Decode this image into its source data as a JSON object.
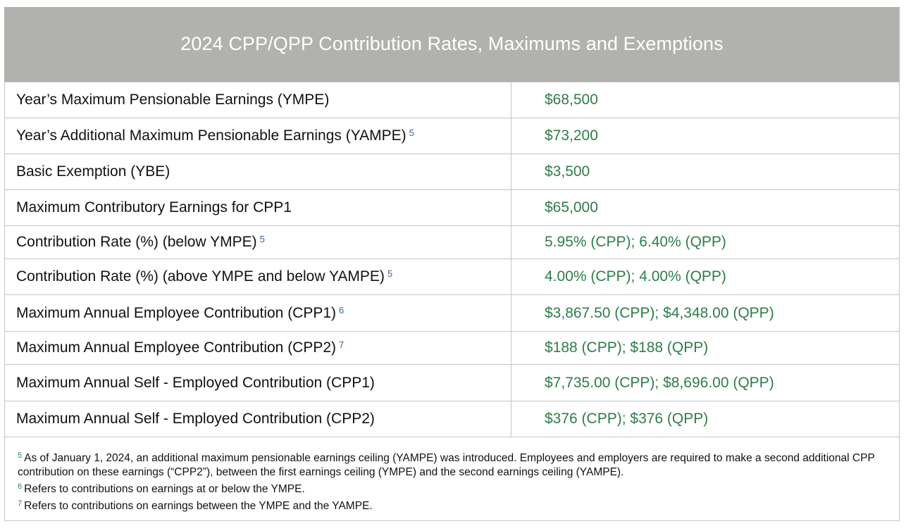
{
  "title": "2024 CPP/QPP Contribution Rates, Maximums and Exemptions",
  "rows": [
    {
      "label": "Year’s Maximum Pensionable Earnings (YMPE)",
      "footnote": "",
      "value": "$68,500"
    },
    {
      "label": "Year’s Additional Maximum Pensionable Earnings (YAMPE)",
      "footnote": "5",
      "value": "$73,200"
    },
    {
      "label": "Basic Exemption (YBE)",
      "footnote": "",
      "value": "$3,500"
    },
    {
      "label": "Maximum Contributory Earnings for CPP1",
      "footnote": "",
      "value": "$65,000"
    },
    {
      "label": "Contribution Rate (%) (below YMPE)",
      "footnote": "5",
      "value": "5.95% (CPP); 6.40% (QPP)"
    },
    {
      "label": "Contribution Rate (%) (above YMPE and below YAMPE)",
      "footnote": "5",
      "value": "4.00% (CPP); 4.00% (QPP)"
    },
    {
      "label": "Maximum Annual Employee Contribution (CPP1)",
      "footnote": "6",
      "value": "$3,867.50 (CPP); $4,348.00 (QPP)"
    },
    {
      "label": "Maximum Annual Employee Contribution (CPP2)",
      "footnote": "7",
      "value": "$188 (CPP); $188 (QPP)"
    },
    {
      "label": "Maximum Annual Self - Employed Contribution (CPP1)",
      "footnote": "",
      "value": "$7,735.00 (CPP); $8,696.00 (QPP)"
    },
    {
      "label": "Maximum Annual Self - Employed Contribution (CPP2)",
      "footnote": "",
      "value": "$376 (CPP); $376 (QPP)"
    }
  ],
  "notes": [
    {
      "marker": "5",
      "text": "As of January 1, 2024, an additional maximum pensionable earnings ceiling (YAMPE) was introduced. Employees and employers are required to make a second additional CPP contribution on these earnings (“CPP2”), between the first earnings ceiling (YMPE) and the second earnings ceiling (YAMPE)."
    },
    {
      "marker": "6",
      "text": "Refers to contributions on earnings at or below the YMPE."
    },
    {
      "marker": "7",
      "text": "Refers to contributions on earnings between the YMPE and the YAMPE."
    }
  ],
  "colors": {
    "header_bg": "#b1b2ad",
    "value_text": "#2e7d47",
    "footnote_ref": "#3b5f99",
    "border": "#c4c4c4"
  }
}
